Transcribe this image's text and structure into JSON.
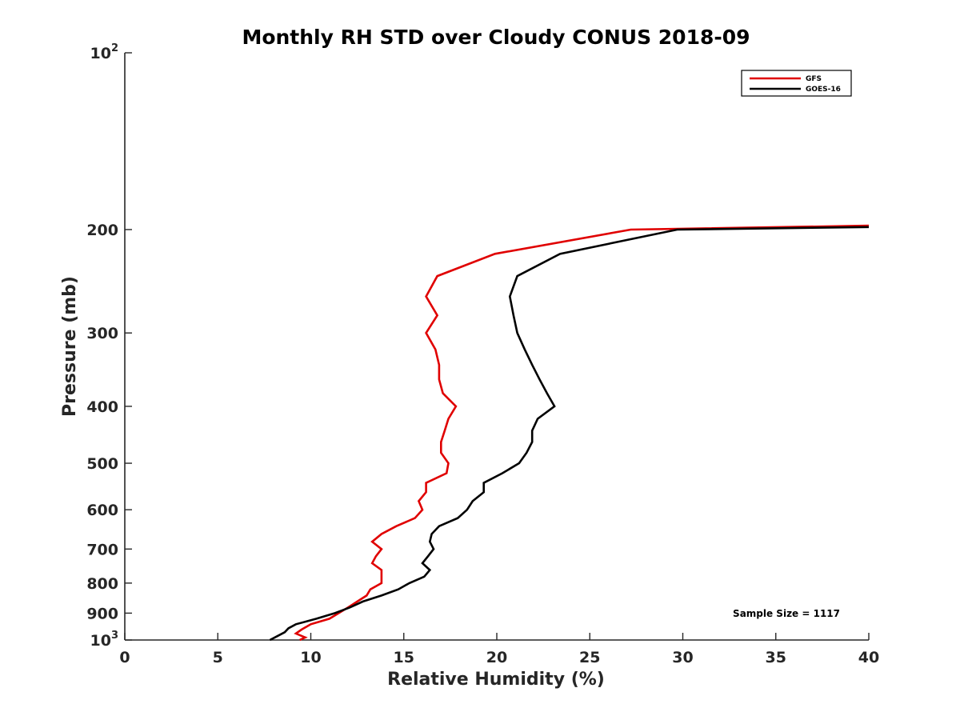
{
  "chart_data": {
    "type": "line",
    "title": "Monthly RH STD over Cloudy CONUS  2018-09",
    "xlabel": "Relative Humidity (%)",
    "ylabel": "Pressure (mb)",
    "xlim": [
      0,
      40
    ],
    "ylim": [
      100,
      1000
    ],
    "y_scale": "log",
    "y_reversed": true,
    "grid": false,
    "legend_position": "top-right",
    "x_ticks": [
      0,
      5,
      10,
      15,
      20,
      25,
      30,
      35,
      40
    ],
    "x_tick_labels": [
      "0",
      "5",
      "10",
      "15",
      "20",
      "25",
      "30",
      "35",
      "40"
    ],
    "y_ticks": [
      100,
      200,
      300,
      400,
      500,
      600,
      700,
      800,
      900,
      1000
    ],
    "y_tick_labels": [
      {
        "base": "10",
        "exp": "2"
      },
      {
        "base": "200",
        "exp": ""
      },
      {
        "base": "300",
        "exp": ""
      },
      {
        "base": "400",
        "exp": ""
      },
      {
        "base": "500",
        "exp": ""
      },
      {
        "base": "600",
        "exp": ""
      },
      {
        "base": "700",
        "exp": ""
      },
      {
        "base": "800",
        "exp": ""
      },
      {
        "base": "900",
        "exp": ""
      },
      {
        "base": "10",
        "exp": "3"
      }
    ],
    "annotation": "Sample Size = 1117",
    "series": [
      {
        "name": "GFS",
        "color": "#e00000",
        "points": [
          [
            40,
            197
          ],
          [
            27.2,
            200
          ],
          [
            19.9,
            220
          ],
          [
            16.8,
            240
          ],
          [
            16.2,
            260
          ],
          [
            16.8,
            280
          ],
          [
            16.2,
            300
          ],
          [
            16.7,
            320
          ],
          [
            16.9,
            340
          ],
          [
            16.9,
            360
          ],
          [
            17.1,
            380
          ],
          [
            17.8,
            400
          ],
          [
            17.4,
            420
          ],
          [
            17.2,
            440
          ],
          [
            17.0,
            460
          ],
          [
            17.0,
            480
          ],
          [
            17.4,
            500
          ],
          [
            17.3,
            520
          ],
          [
            16.2,
            540
          ],
          [
            16.2,
            560
          ],
          [
            15.8,
            580
          ],
          [
            16.0,
            600
          ],
          [
            15.6,
            620
          ],
          [
            14.6,
            640
          ],
          [
            13.8,
            660
          ],
          [
            13.3,
            680
          ],
          [
            13.8,
            700
          ],
          [
            13.5,
            720
          ],
          [
            13.3,
            740
          ],
          [
            13.8,
            760
          ],
          [
            13.8,
            780
          ],
          [
            13.8,
            800
          ],
          [
            13.2,
            820
          ],
          [
            13.0,
            840
          ],
          [
            12.5,
            860
          ],
          [
            12.0,
            880
          ],
          [
            11.5,
            900
          ],
          [
            11.0,
            920
          ],
          [
            10.0,
            940
          ],
          [
            9.5,
            960
          ],
          [
            9.2,
            975
          ],
          [
            9.7,
            990
          ],
          [
            9.4,
            1000
          ]
        ]
      },
      {
        "name": "GOES-16",
        "color": "#000000",
        "points": [
          [
            40,
            198
          ],
          [
            29.7,
            200
          ],
          [
            23.4,
            220
          ],
          [
            21.1,
            240
          ],
          [
            20.7,
            260
          ],
          [
            20.9,
            280
          ],
          [
            21.1,
            300
          ],
          [
            21.5,
            320
          ],
          [
            21.9,
            340
          ],
          [
            22.3,
            360
          ],
          [
            22.7,
            380
          ],
          [
            23.1,
            400
          ],
          [
            22.2,
            420
          ],
          [
            21.9,
            440
          ],
          [
            21.9,
            460
          ],
          [
            21.6,
            480
          ],
          [
            21.2,
            500
          ],
          [
            20.3,
            520
          ],
          [
            19.3,
            540
          ],
          [
            19.3,
            560
          ],
          [
            18.7,
            580
          ],
          [
            18.4,
            600
          ],
          [
            17.9,
            620
          ],
          [
            16.9,
            640
          ],
          [
            16.5,
            660
          ],
          [
            16.4,
            680
          ],
          [
            16.6,
            700
          ],
          [
            16.3,
            720
          ],
          [
            16.0,
            740
          ],
          [
            16.4,
            760
          ],
          [
            16.1,
            780
          ],
          [
            15.3,
            800
          ],
          [
            14.7,
            820
          ],
          [
            13.8,
            840
          ],
          [
            12.8,
            860
          ],
          [
            12.1,
            880
          ],
          [
            11.3,
            900
          ],
          [
            10.3,
            920
          ],
          [
            9.2,
            940
          ],
          [
            8.8,
            955
          ],
          [
            8.6,
            970
          ],
          [
            8.2,
            985
          ],
          [
            7.8,
            1000
          ]
        ]
      }
    ]
  }
}
